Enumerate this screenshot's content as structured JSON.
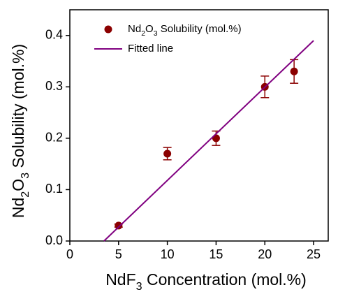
{
  "chart_data": {
    "type": "scatter",
    "xlabel": "NdF3 Concentration (mol.%)",
    "ylabel": "Nd2O3 Solubility (mol.%)",
    "xlim": [
      0,
      26.5
    ],
    "ylim": [
      0,
      0.45
    ],
    "xticks": [
      0,
      5,
      10,
      15,
      20,
      25
    ],
    "yticks": [
      {
        "value": 0,
        "label": "0.0"
      },
      0.1,
      0.2,
      0.3,
      0.4
    ],
    "legend": "upper-left",
    "series": [
      {
        "name": "Nd2O3 Solubility (mol.%)",
        "type": "scatter",
        "color": "#8b0000",
        "x": [
          5,
          10,
          15,
          20,
          23
        ],
        "values": [
          0.03,
          0.17,
          0.2,
          0.3,
          0.33
        ],
        "errors": [
          0.003,
          0.012,
          0.014,
          0.021,
          0.023
        ]
      },
      {
        "name": "Fitted line",
        "type": "line",
        "color": "#800080",
        "x": [
          3.5,
          25
        ],
        "values": [
          0,
          0.39
        ]
      }
    ]
  }
}
